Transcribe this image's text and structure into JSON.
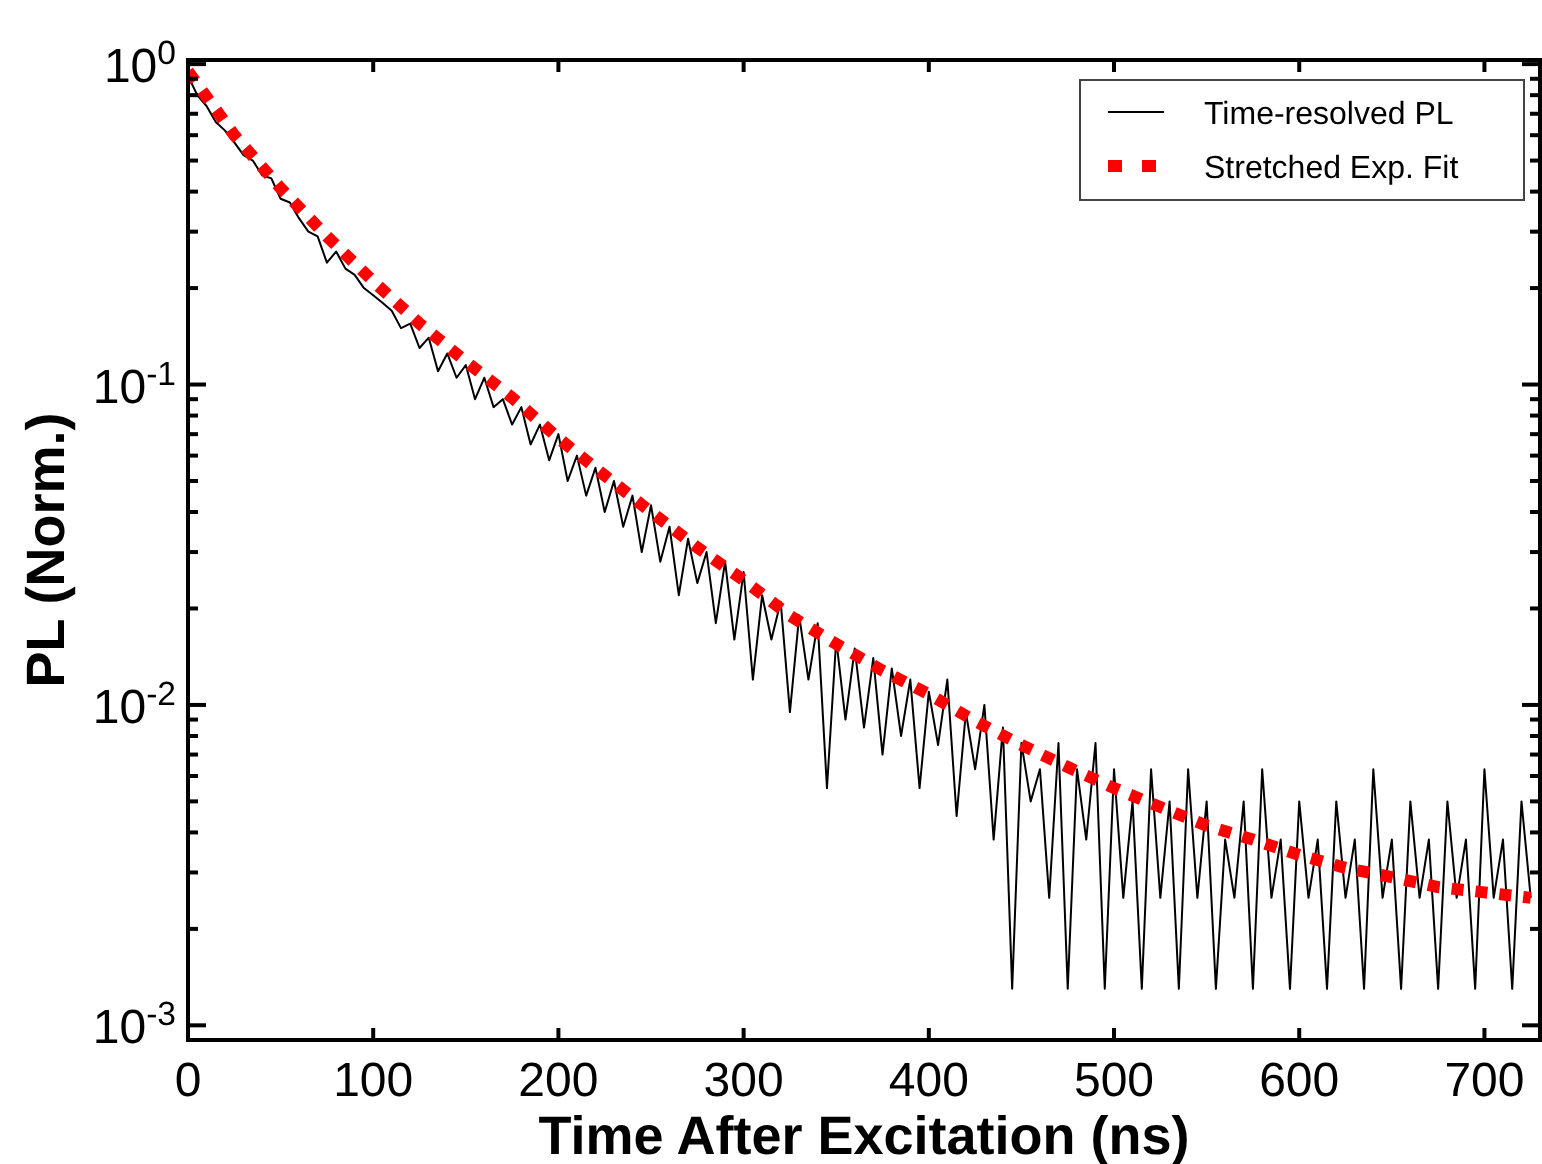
{
  "chart_data": {
    "type": "line",
    "xlabel": "Time After Excitation (ns)",
    "ylabel": "PL (Norm.)",
    "log": "y",
    "legend": "top right",
    "grid": false,
    "xlim": [
      0,
      730
    ],
    "xticks": [
      0,
      100,
      200,
      300,
      400,
      500,
      600,
      700
    ],
    "ylim": [
      0.0009,
      1.03
    ],
    "yticks": [
      {
        "value": 0.001,
        "label": "10$^{-3}$"
      },
      {
        "value": 0.002,
        "label": null
      },
      {
        "value": 0.003,
        "label": null
      },
      {
        "value": 0.004,
        "label": null
      },
      {
        "value": 0.005,
        "label": null
      },
      {
        "value": 0.006,
        "label": null
      },
      {
        "value": 0.007,
        "label": null
      },
      {
        "value": 0.008,
        "label": null
      },
      {
        "value": 0.009,
        "label": null
      },
      {
        "value": 0.01,
        "label": "10$^{-2}$"
      },
      {
        "value": 0.02,
        "label": null
      },
      {
        "value": 0.03,
        "label": null
      },
      {
        "value": 0.04,
        "label": null
      },
      {
        "value": 0.05,
        "label": null
      },
      {
        "value": 0.06,
        "label": null
      },
      {
        "value": 0.07,
        "label": null
      },
      {
        "value": 0.08,
        "label": null
      },
      {
        "value": 0.09,
        "label": null
      },
      {
        "value": 0.1,
        "label": "10$^{-1}$"
      },
      {
        "value": 0.2,
        "label": null
      },
      {
        "value": 0.3,
        "label": null
      },
      {
        "value": 0.4,
        "label": null
      },
      {
        "value": 0.5,
        "label": null
      },
      {
        "value": 0.6,
        "label": null
      },
      {
        "value": 0.7,
        "label": null
      },
      {
        "value": 0.8,
        "label": null
      },
      {
        "value": 0.9,
        "label": null
      },
      {
        "value": 1,
        "label": "10$^{0}$"
      }
    ],
    "series": [
      {
        "name": "Time-resolved PL",
        "color": "#000000",
        "line_style": "solid",
        "x": [
          0,
          5,
          10,
          15,
          20,
          25,
          30,
          35,
          40,
          45,
          50,
          55,
          60,
          65,
          70,
          75,
          80,
          85,
          90,
          95,
          100,
          105,
          110,
          115,
          120,
          125,
          130,
          135,
          140,
          145,
          150,
          155,
          160,
          165,
          170,
          175,
          180,
          185,
          190,
          195,
          200,
          205,
          210,
          215,
          220,
          225,
          230,
          235,
          240,
          245,
          250,
          255,
          260,
          265,
          270,
          275,
          280,
          285,
          290,
          295,
          300,
          305,
          310,
          315,
          320,
          325,
          330,
          335,
          340,
          345,
          350,
          355,
          360,
          365,
          370,
          375,
          380,
          385,
          390,
          395,
          400,
          405,
          410,
          415,
          420,
          425,
          430,
          435,
          440,
          445,
          450,
          455,
          460,
          465,
          470,
          475,
          480,
          485,
          490,
          495,
          500,
          505,
          510,
          515,
          520,
          525,
          530,
          535,
          540,
          545,
          550,
          555,
          560,
          565,
          570,
          575,
          580,
          585,
          590,
          595,
          600,
          605,
          610,
          615,
          620,
          625,
          630,
          635,
          640,
          645,
          650,
          655,
          660,
          665,
          670,
          675,
          680,
          685,
          690,
          695,
          700,
          705,
          710,
          715,
          720,
          725
        ],
        "values": [
          0.92,
          0.8,
          0.74,
          0.66,
          0.62,
          0.57,
          0.52,
          0.5,
          0.45,
          0.44,
          0.38,
          0.37,
          0.33,
          0.3,
          0.29,
          0.24,
          0.26,
          0.23,
          0.22,
          0.2,
          0.19,
          0.18,
          0.17,
          0.15,
          0.155,
          0.13,
          0.14,
          0.11,
          0.125,
          0.105,
          0.115,
          0.09,
          0.105,
          0.085,
          0.09,
          0.075,
          0.085,
          0.065,
          0.075,
          0.058,
          0.07,
          0.05,
          0.06,
          0.045,
          0.055,
          0.04,
          0.05,
          0.036,
          0.045,
          0.03,
          0.042,
          0.028,
          0.036,
          0.022,
          0.033,
          0.024,
          0.03,
          0.018,
          0.028,
          0.016,
          0.026,
          0.012,
          0.022,
          0.016,
          0.021,
          0.0095,
          0.019,
          0.012,
          0.018,
          0.0055,
          0.016,
          0.009,
          0.015,
          0.0085,
          0.014,
          0.007,
          0.013,
          0.008,
          0.012,
          0.0055,
          0.011,
          0.0075,
          0.012,
          0.0045,
          0.0095,
          0.0063,
          0.01,
          0.0038,
          0.0085,
          0.0013,
          0.0076,
          0.005,
          0.0063,
          0.0025,
          0.0076,
          0.0013,
          0.0063,
          0.0038,
          0.0076,
          0.0013,
          0.0063,
          0.0025,
          0.005,
          0.0013,
          0.0063,
          0.0025,
          0.005,
          0.0013,
          0.0063,
          0.0025,
          0.005,
          0.0013,
          0.0038,
          0.0025,
          0.005,
          0.0013,
          0.0063,
          0.0025,
          0.0038,
          0.0013,
          0.005,
          0.0025,
          0.0038,
          0.0013,
          0.005,
          0.0025,
          0.0038,
          0.0013,
          0.0063,
          0.0025,
          0.0038,
          0.0013,
          0.005,
          0.0025,
          0.0038,
          0.0013,
          0.005,
          0.0025,
          0.0038,
          0.0013,
          0.0063,
          0.0025,
          0.0038,
          0.0013,
          0.005,
          0.0025
        ]
      },
      {
        "name": "Stretched Exp. Fit",
        "color": "#ff0000",
        "line_style": "dashed",
        "x": [
          0,
          25,
          50,
          75,
          100,
          125,
          150,
          175,
          200,
          225,
          250,
          275,
          300,
          325,
          350,
          375,
          400,
          425,
          450,
          475,
          500,
          525,
          550,
          575,
          600,
          625,
          650,
          675,
          700,
          725
        ],
        "values": [
          0.95,
          0.6,
          0.41,
          0.29,
          0.21,
          0.155,
          0.118,
          0.091,
          0.068,
          0.052,
          0.04,
          0.031,
          0.0245,
          0.019,
          0.0155,
          0.0128,
          0.0108,
          0.0089,
          0.0075,
          0.0064,
          0.0055,
          0.0048,
          0.0042,
          0.0038,
          0.0034,
          0.0031,
          0.0029,
          0.0027,
          0.0026,
          0.0025
        ]
      }
    ]
  }
}
